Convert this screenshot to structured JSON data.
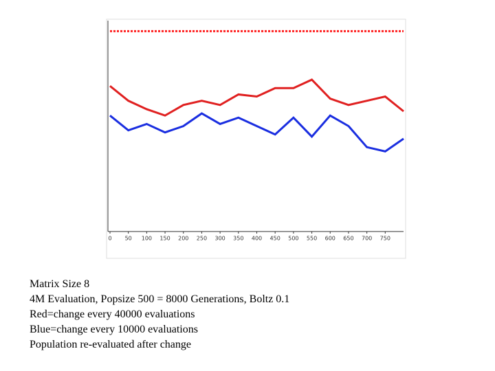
{
  "chart_data": {
    "type": "line",
    "x": [
      0,
      50,
      100,
      150,
      200,
      250,
      300,
      350,
      400,
      450,
      500,
      550,
      600,
      650,
      700,
      750,
      800
    ],
    "series": [
      {
        "color": "#ff2020",
        "values": [
          95,
          95,
          95,
          95,
          95,
          95,
          95,
          95,
          95,
          95,
          95,
          95,
          95,
          95,
          95,
          95,
          95
        ]
      },
      {
        "color": "#e02020",
        "values": [
          69,
          62,
          58,
          55,
          60,
          62,
          60,
          65,
          64,
          68,
          68,
          72,
          63,
          60,
          62,
          64,
          57
        ]
      },
      {
        "color": "#1a2ee0",
        "values": [
          55,
          48,
          51,
          47,
          50,
          56,
          51,
          54,
          50,
          46,
          54,
          45,
          55,
          50,
          40,
          38,
          44
        ]
      }
    ],
    "xlim": [
      0,
      800
    ],
    "ylim": [
      0,
      100
    ],
    "xticks": [
      0,
      50,
      100,
      150,
      200,
      250,
      300,
      350,
      400,
      450,
      500,
      550,
      600,
      650,
      700,
      750
    ],
    "grid": false
  },
  "caption": [
    "Matrix Size 8",
    "4M Evaluation, Popsize 500 = 8000 Generations, Boltz 0.1",
    "Red=change every 40000 evaluations",
    "Blue=change every 10000 evaluations",
    "Population re-evaluated after change"
  ]
}
